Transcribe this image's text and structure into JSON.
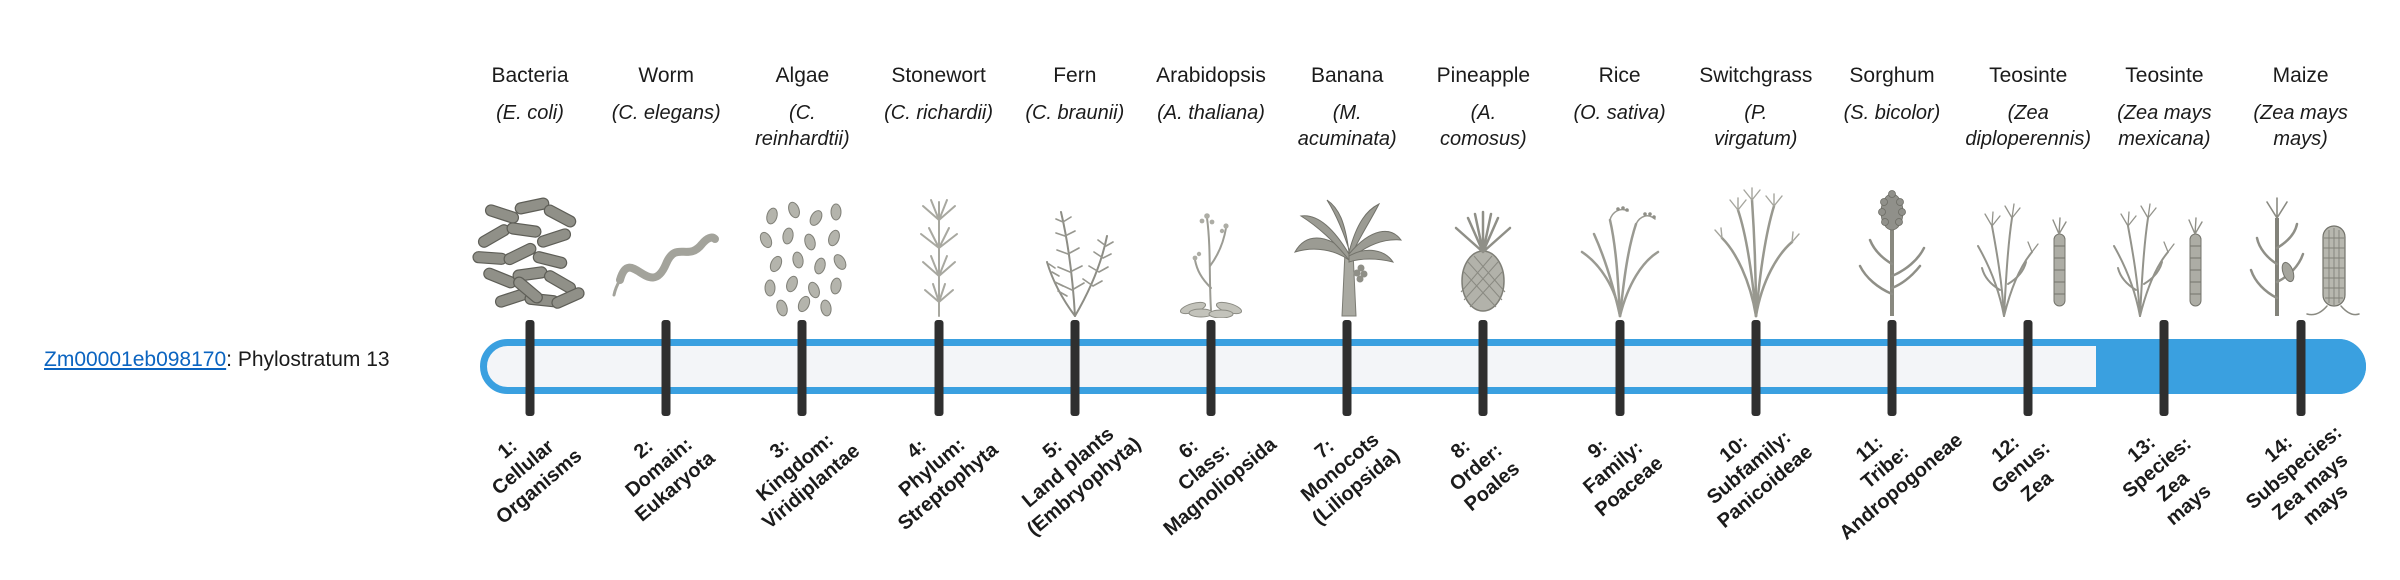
{
  "gene": {
    "id": "Zm00001eb098170",
    "suffix": ": Phylostratum 13"
  },
  "phylostratum": 13,
  "colors": {
    "accent": "#3aa0e0",
    "track_fill": "#f3f5f8",
    "tick": "#2f2f2f",
    "link": "#0b64c0"
  },
  "strata": [
    {
      "n": 1,
      "common": "Bacteria",
      "scientific": "(E. coli)",
      "icon": "bacteria-icon",
      "label": "1:\nCellular\nOrganisms"
    },
    {
      "n": 2,
      "common": "Worm",
      "scientific": "(C. elegans)",
      "icon": "worm-icon",
      "label": "2:\nDomain:\nEukaryota"
    },
    {
      "n": 3,
      "common": "Algae",
      "scientific": "(C.\nreinhardtii)",
      "icon": "algae-icon",
      "label": "3:\nKingdom:\nViridiplantae"
    },
    {
      "n": 4,
      "common": "Stonewort",
      "scientific": "(C. richardii)",
      "icon": "stonewort-icon",
      "label": "4:\nPhylum:\nStreptophyta"
    },
    {
      "n": 5,
      "common": "Fern",
      "scientific": "(C. braunii)",
      "icon": "fern-icon",
      "label": "5:\nLand plants\n(Embryophyta)"
    },
    {
      "n": 6,
      "common": "Arabidopsis",
      "scientific": "(A. thaliana)",
      "icon": "arabidopsis-icon",
      "label": "6:\nClass:\nMagnoliopsida"
    },
    {
      "n": 7,
      "common": "Banana",
      "scientific": "(M.\nacuminata)",
      "icon": "banana-icon",
      "label": "7:\nMonocots\n(Liliopsida)"
    },
    {
      "n": 8,
      "common": "Pineapple",
      "scientific": "(A.\ncomosus)",
      "icon": "pineapple-icon",
      "label": "8:\nOrder:\nPoales"
    },
    {
      "n": 9,
      "common": "Rice",
      "scientific": "(O. sativa)",
      "icon": "rice-icon",
      "label": "9:\nFamily:\nPoaceae"
    },
    {
      "n": 10,
      "common": "Switchgrass",
      "scientific": "(P.\nvirgatum)",
      "icon": "switchgrass-icon",
      "label": "10:\nSubfamily:\nPanicoideae"
    },
    {
      "n": 11,
      "common": "Sorghum",
      "scientific": "(S. bicolor)",
      "icon": "sorghum-icon",
      "label": "11:\nTribe:\nAndropogoneae"
    },
    {
      "n": 12,
      "common": "Teosinte",
      "scientific": "(Zea\ndiploperennis)",
      "icon": "teosinte-icon",
      "label": "12:\nGenus:\nZea"
    },
    {
      "n": 13,
      "common": "Teosinte",
      "scientific": "(Zea mays\nmexicana)",
      "icon": "teosinte-icon",
      "label": "13:\nSpecies:\nZea\nmays"
    },
    {
      "n": 14,
      "common": "Maize",
      "scientific": "(Zea mays\nmays)",
      "icon": "maize-icon",
      "label": "14:\nSubspecies:\nZea mays\nmays"
    }
  ]
}
